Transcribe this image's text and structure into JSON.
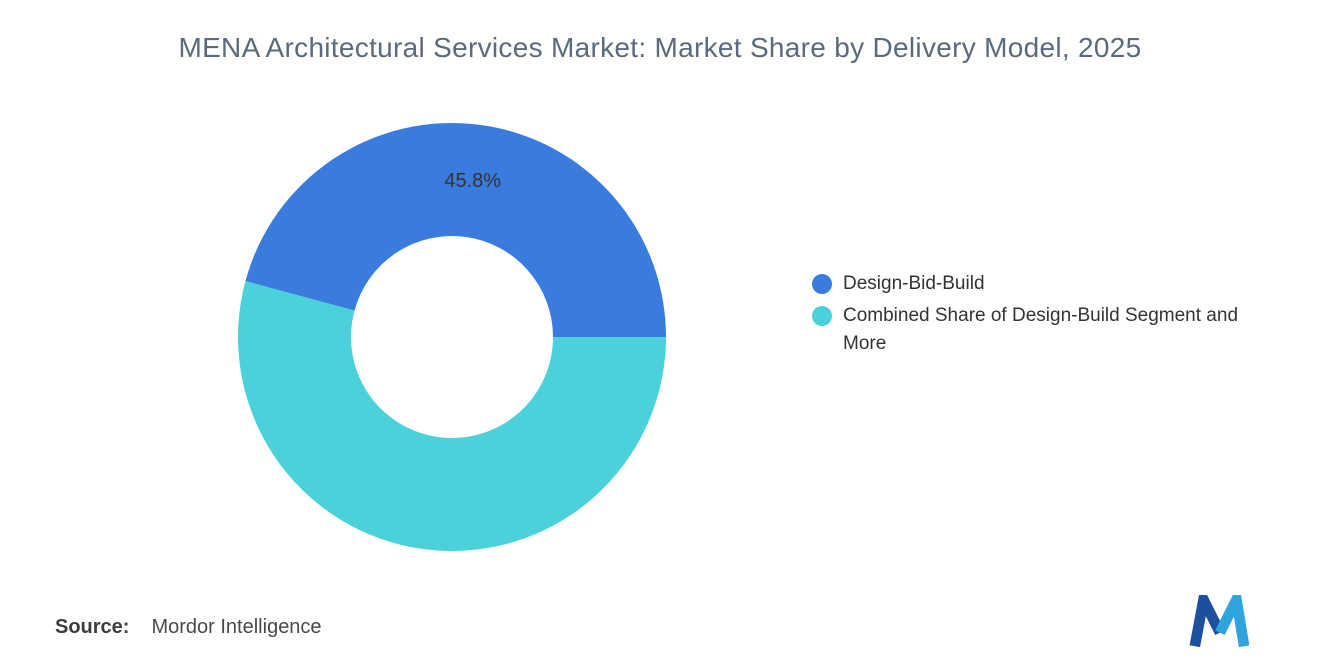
{
  "title": "MENA Architectural Services Market: Market Share by Delivery Model, 2025",
  "chart_data": {
    "type": "pie",
    "subtype": "donut",
    "title": "MENA Architectural Services Market: Market Share by Delivery Model, 2025",
    "categories": [
      "Design-Bid-Build",
      "Combined Share of Design-Build Segment and More"
    ],
    "values": [
      45.8,
      54.2
    ],
    "slice_labels": [
      "45.8%",
      ""
    ],
    "colors": [
      "#3a7cde",
      "#4bd1da"
    ],
    "label_color": "#333333",
    "start_angle_deg": 0,
    "direction": "counterclockwise",
    "inner_radius_ratio": 0.47,
    "legend_position": "right",
    "background": "#ffffff"
  },
  "legend": {
    "items": [
      {
        "label": "Design-Bid-Build",
        "color": "#3a7cde"
      },
      {
        "label": "Combined Share of Design-Build Segment and More",
        "color": "#4bd1da"
      }
    ]
  },
  "source": {
    "label": "Source:",
    "value": "Mordor Intelligence"
  },
  "logo": {
    "name": "mordor-intelligence-logo",
    "dark_blue": "#1d4f9c",
    "light_blue": "#2ea4dc"
  }
}
